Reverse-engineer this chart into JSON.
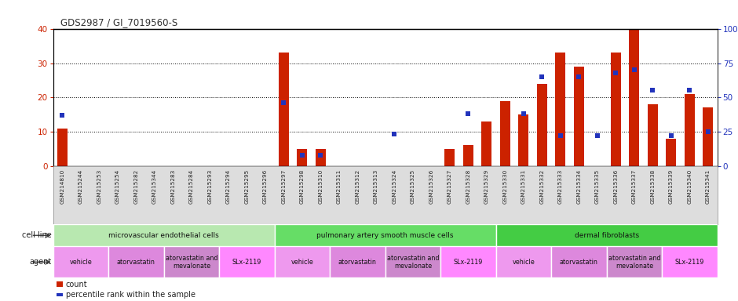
{
  "title": "GDS2987 / GI_7019560-S",
  "samples": [
    "GSM214810",
    "GSM215244",
    "GSM215253",
    "GSM215254",
    "GSM215282",
    "GSM215344",
    "GSM215283",
    "GSM215284",
    "GSM215293",
    "GSM215294",
    "GSM215295",
    "GSM215296",
    "GSM215297",
    "GSM215298",
    "GSM215310",
    "GSM215311",
    "GSM215312",
    "GSM215313",
    "GSM215324",
    "GSM215325",
    "GSM215326",
    "GSM215327",
    "GSM215328",
    "GSM215329",
    "GSM215330",
    "GSM215331",
    "GSM215332",
    "GSM215333",
    "GSM215334",
    "GSM215335",
    "GSM215336",
    "GSM215337",
    "GSM215338",
    "GSM215339",
    "GSM215340",
    "GSM215341"
  ],
  "counts": [
    11,
    0,
    0,
    0,
    0,
    0,
    0,
    0,
    0,
    0,
    0,
    0,
    33,
    5,
    5,
    0,
    0,
    0,
    0,
    0,
    0,
    5,
    6,
    13,
    19,
    15,
    24,
    33,
    29,
    0,
    33,
    40,
    18,
    8,
    21,
    17
  ],
  "percentiles": [
    37,
    0,
    0,
    0,
    0,
    0,
    0,
    0,
    0,
    0,
    0,
    0,
    46,
    8,
    8,
    0,
    0,
    0,
    23,
    0,
    0,
    0,
    38,
    0,
    0,
    38,
    65,
    22,
    65,
    22,
    68,
    70,
    55,
    22,
    55,
    25
  ],
  "ylim_left": [
    0,
    40
  ],
  "ylim_right": [
    0,
    100
  ],
  "left_ticks": [
    0,
    10,
    20,
    30,
    40
  ],
  "right_ticks": [
    0,
    25,
    50,
    75,
    100
  ],
  "bar_color": "#CC2200",
  "dot_color": "#2233BB",
  "grid_color": "#333333",
  "title_color": "#333333",
  "cell_line_groups": [
    {
      "label": "microvascular endothelial cells",
      "start": 0,
      "end": 12,
      "color": "#b8e8b0"
    },
    {
      "label": "pulmonary artery smooth muscle cells",
      "start": 12,
      "end": 24,
      "color": "#66dd66"
    },
    {
      "label": "dermal fibroblasts",
      "start": 24,
      "end": 36,
      "color": "#44cc44"
    }
  ],
  "agent_groups": [
    {
      "label": "vehicle",
      "start": 0,
      "end": 3,
      "color": "#ee99ee"
    },
    {
      "label": "atorvastatin",
      "start": 3,
      "end": 6,
      "color": "#dd88dd"
    },
    {
      "label": "atorvastatin and\nmevalonate",
      "start": 6,
      "end": 9,
      "color": "#cc88cc"
    },
    {
      "label": "SLx-2119",
      "start": 9,
      "end": 12,
      "color": "#ff88ff"
    },
    {
      "label": "vehicle",
      "start": 12,
      "end": 15,
      "color": "#ee99ee"
    },
    {
      "label": "atorvastatin",
      "start": 15,
      "end": 18,
      "color": "#dd88dd"
    },
    {
      "label": "atorvastatin and\nmevalonate",
      "start": 18,
      "end": 21,
      "color": "#cc88cc"
    },
    {
      "label": "SLx-2119",
      "start": 21,
      "end": 24,
      "color": "#ff88ff"
    },
    {
      "label": "vehicle",
      "start": 24,
      "end": 27,
      "color": "#ee99ee"
    },
    {
      "label": "atorvastatin",
      "start": 27,
      "end": 30,
      "color": "#dd88dd"
    },
    {
      "label": "atorvastatin and\nmevalonate",
      "start": 30,
      "end": 33,
      "color": "#cc88cc"
    },
    {
      "label": "SLx-2119",
      "start": 33,
      "end": 36,
      "color": "#ff88ff"
    }
  ],
  "cell_line_row_label": "cell line",
  "agent_row_label": "agent",
  "legend_count_label": "count",
  "legend_pct_label": "percentile rank within the sample",
  "axis_label_color_left": "#CC2200",
  "axis_label_color_right": "#2233BB",
  "xlabel_bg": "#dddddd"
}
